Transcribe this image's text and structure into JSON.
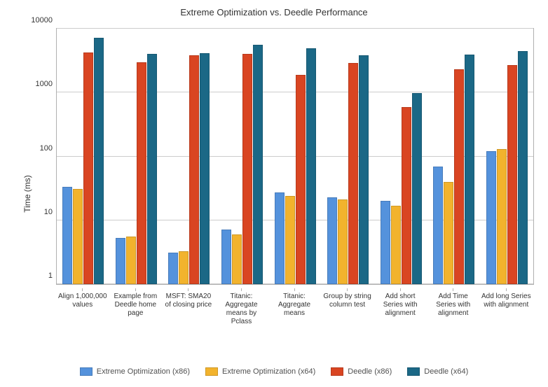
{
  "chart": {
    "type": "bar",
    "title": "Extreme Optimization vs. Deedle Performance",
    "title_fontsize": 13,
    "y_label": "Time (ms)",
    "label_fontsize": 12,
    "y_scale": "log",
    "y_min": 1,
    "y_max": 10000,
    "y_ticks": [
      1,
      10,
      100,
      1000,
      10000
    ],
    "background_color": "#ffffff",
    "grid_color": "#cccccc",
    "axis_color": "#b0b0b0",
    "series": [
      {
        "name": "Extreme Optimization (x86)",
        "color": "#5492dc"
      },
      {
        "name": "Extreme Optimization (x64)",
        "color": "#f2b32d"
      },
      {
        "name": "Deedle (x86)",
        "color": "#d94522"
      },
      {
        "name": "Deedle (x64)",
        "color": "#1b6886"
      }
    ],
    "categories": [
      "Align 1,000,000 values",
      "Example from Deedle home page",
      "MSFT: SMA20 of closing price",
      "Titanic: Aggregate means by Pclass",
      "Titanic: Aggregate means",
      "Group by string column test",
      "Add short Series with alignment",
      "Add Time Series with alignment",
      "Add long Series with alignment"
    ],
    "data": [
      [
        33,
        31,
        4200,
        7200
      ],
      [
        5.3,
        5.5,
        3000,
        4000
      ],
      [
        3.1,
        3.3,
        3800,
        4100
      ],
      [
        7.2,
        6.0,
        4000,
        5600
      ],
      [
        27,
        24,
        1900,
        4900
      ],
      [
        23,
        21,
        2900,
        3800
      ],
      [
        20,
        17,
        600,
        970
      ],
      [
        70,
        40,
        2300,
        3900
      ],
      [
        120,
        130,
        2700,
        4500
      ]
    ]
  }
}
